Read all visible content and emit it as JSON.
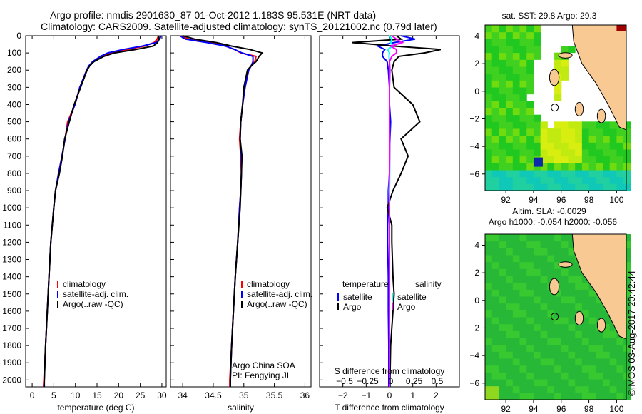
{
  "title_line1": "Argo profile: nmdis 2901630_87 01-Oct-2012 1.183S 95.531E (NRT data)",
  "title_line2": "Climatology: CARS2009. Satellite-adjusted climatology: synTS_20121002.nc (0.79d later)",
  "footer_stamp": "©IMOS 03-Aug-2017 20:42:44",
  "colors": {
    "climatology": "#ff0000",
    "satellite": "#0000ff",
    "argo": "#000000",
    "sal_satellite": "#00ffff",
    "sal_argo": "#ff00ff",
    "land": "#f9c993"
  },
  "chart_data": [
    {
      "type": "line",
      "id": "temp",
      "xlabel": "temperature (deg C)",
      "ylabel": "",
      "xlim": [
        -1.5,
        31
      ],
      "ylim": [
        2040,
        0
      ],
      "xticks": [
        0,
        5,
        10,
        15,
        20,
        25,
        30
      ],
      "yticks": [
        0,
        100,
        200,
        300,
        400,
        500,
        600,
        700,
        800,
        900,
        1000,
        1100,
        1200,
        1300,
        1400,
        1500,
        1600,
        1700,
        1800,
        1900,
        2000
      ],
      "legend": [
        "climatology",
        "satellite-adj. clim.",
        "Argo(..raw -QC)"
      ],
      "depth": [
        0,
        20,
        40,
        60,
        80,
        100,
        120,
        150,
        175,
        200,
        300,
        400,
        500,
        600,
        700,
        800,
        900,
        1000,
        1200,
        1400,
        1600,
        1800,
        2000,
        2040
      ],
      "series": [
        {
          "name": "climatology",
          "color": "#ff0000",
          "values": [
            29.2,
            28.9,
            28.2,
            26,
            22,
            18.5,
            16.3,
            14.2,
            13.2,
            12.6,
            11,
            9.9,
            8.2,
            7.6,
            6.9,
            6.1,
            5.4,
            5,
            4.3,
            3.9,
            3.5,
            3.1,
            2.7,
            2.6
          ]
        },
        {
          "name": "satellite-adj. clim.",
          "color": "#0000ff",
          "values": [
            29.8,
            29.5,
            28.6,
            25.5,
            21,
            17.5,
            15.8,
            14,
            13.1,
            12.6,
            11,
            9.9,
            8.4,
            7.6,
            6.9,
            6.1,
            5.4,
            5,
            4.3,
            3.9,
            3.5,
            3.1,
            2.8,
            2.7
          ]
        },
        {
          "name": "Argo(..raw -QC)",
          "color": "#000000",
          "values": [
            29.3,
            29.3,
            29,
            28,
            24,
            19,
            16.6,
            14.3,
            13.3,
            12.7,
            11.2,
            9.7,
            8.6,
            7.5,
            7,
            6.3,
            5.4,
            5,
            4.3,
            3.9,
            3.5,
            3.1,
            2.8,
            2.8
          ]
        }
      ]
    },
    {
      "type": "line",
      "id": "sal",
      "xlabel": "salinity",
      "ylabel": "",
      "xlim": [
        33.8,
        36.1
      ],
      "ylim": [
        2040,
        0
      ],
      "xticks": [
        34,
        34.5,
        35,
        35.5,
        36
      ],
      "legend": [
        "climatology",
        "satellite-adj. clim.",
        "Argo(..raw -QC)"
      ],
      "annotation": [
        "Argo China SOA",
        "PI: Fengying JI"
      ],
      "depth": [
        0,
        20,
        40,
        60,
        80,
        100,
        120,
        150,
        175,
        200,
        300,
        400,
        500,
        600,
        700,
        800,
        900,
        1000,
        1200,
        1400,
        1600,
        1800,
        2000,
        2040
      ],
      "series": [
        {
          "name": "climatology",
          "color": "#ff0000",
          "values": [
            33.95,
            34.1,
            34.45,
            34.7,
            34.85,
            34.95,
            35.2,
            35.18,
            35.12,
            35.08,
            35.02,
            34.98,
            34.95,
            34.93,
            34.95,
            34.96,
            34.95,
            34.93,
            34.9,
            34.86,
            34.83,
            34.8,
            34.77,
            34.77
          ]
        },
        {
          "name": "satellite-adj. clim.",
          "color": "#0000ff",
          "values": [
            33.95,
            34.05,
            34.4,
            34.7,
            34.85,
            34.97,
            35.15,
            35.15,
            35.12,
            35.08,
            35.02,
            34.98,
            34.95,
            34.94,
            34.96,
            34.96,
            34.95,
            34.93,
            34.9,
            34.86,
            34.83,
            34.8,
            34.78,
            34.78
          ]
        },
        {
          "name": "Argo(..raw -QC)",
          "color": "#000000",
          "values": [
            34.0,
            34.2,
            34.55,
            34.8,
            35.1,
            35.3,
            35.25,
            35.2,
            35.12,
            35.06,
            35.0,
            34.98,
            34.95,
            34.94,
            34.97,
            34.96,
            34.95,
            34.94,
            34.9,
            34.86,
            34.83,
            34.8,
            34.78,
            34.78
          ]
        }
      ]
    },
    {
      "type": "line",
      "id": "diff",
      "xlabel": "T difference from climatology",
      "xlabel_top": "S difference from climatology",
      "xlim": [
        -3,
        3
      ],
      "ylim": [
        2040,
        0
      ],
      "xticks": [
        -2,
        -1,
        0,
        1,
        2
      ],
      "xticks_top": [
        -0.5,
        -0.25,
        0,
        0.25,
        0.5
      ],
      "xticks_top_range": [
        -0.75,
        0.75
      ],
      "legend_titles": [
        "temperature",
        "salinity"
      ],
      "legend": [
        "satellite",
        "Argo",
        "satellite",
        "Argo"
      ],
      "depth": [
        0,
        20,
        40,
        60,
        80,
        100,
        120,
        150,
        200,
        300,
        400,
        500,
        600,
        700,
        800,
        900,
        1000,
        1100,
        1200,
        1400,
        1500,
        1600,
        1800,
        2000,
        2040
      ],
      "series": [
        {
          "name": "T satellite",
          "color": "#0000ff",
          "values": [
            0.5,
            1.1,
            0.2,
            -0.5,
            -0.2,
            -0.3,
            -0.3,
            -0.1,
            -0.05,
            0,
            0,
            0.05,
            0.02,
            0,
            0,
            -0.05,
            -0.05,
            -0.08,
            -0.08,
            -0.05,
            -0.05,
            -0.05,
            -0.03,
            -0.03,
            -0.03
          ]
        },
        {
          "name": "T Argo",
          "color": "#000000",
          "values": [
            0.3,
            0.5,
            -1.6,
            0.2,
            2.2,
            1.5,
            0.4,
            0.2,
            0.1,
            0.2,
            1.0,
            1.3,
            0.5,
            0.8,
            0.5,
            0.15,
            -0.1,
            0.1,
            0.1,
            0.15,
            0.2,
            0.15,
            0.05,
            0.02,
            0.02
          ]
        },
        {
          "name": "S satellite",
          "color": "#00ffff",
          "values": [
            0,
            0.1,
            0.05,
            0.15,
            -0.08,
            0.0,
            -0.02,
            0.0,
            0.02,
            0.0,
            0.0,
            0.0,
            0.01,
            0.01,
            0.01,
            0.0,
            0.0,
            0.0,
            0.0,
            0.0,
            0.0,
            0.0,
            0.0,
            0.0,
            0.0
          ]
        },
        {
          "name": "S Argo",
          "color": "#ff00ff",
          "values": [
            0.1,
            0.3,
            0.55,
            0.05,
            0.3,
            0.3,
            0.1,
            0.0,
            0.02,
            0.0,
            0.0,
            0.0,
            0.01,
            0.01,
            0.0,
            -0.03,
            0.0,
            0.0,
            0.0,
            0.0,
            0.0,
            0.0,
            0.0,
            0.0,
            0.0
          ]
        }
      ]
    },
    {
      "type": "heatmap",
      "id": "map_sst",
      "title": "sat. SST: 29.8 Argo: 29.3",
      "xlim": [
        90.5,
        100.7
      ],
      "ylim": [
        -7.2,
        4.8
      ],
      "xticks": [
        92,
        94,
        96,
        98,
        100
      ],
      "yticks": [
        4,
        2,
        0,
        -2,
        -4,
        -6
      ],
      "argo_position": [
        95.531,
        -1.183
      ]
    },
    {
      "type": "heatmap",
      "id": "map_sla",
      "title_line1": "Altim. SLA: -0.0029",
      "title_line2": "Argo h1000: -0.054 h2000: -0.056",
      "xlim": [
        90.5,
        100.7
      ],
      "ylim": [
        -7.2,
        4.8
      ],
      "xticks": [
        92,
        94,
        96,
        98,
        100
      ],
      "yticks": [
        4,
        2,
        0,
        -2,
        -4,
        -6
      ],
      "argo_position": [
        95.531,
        -1.183
      ]
    }
  ]
}
